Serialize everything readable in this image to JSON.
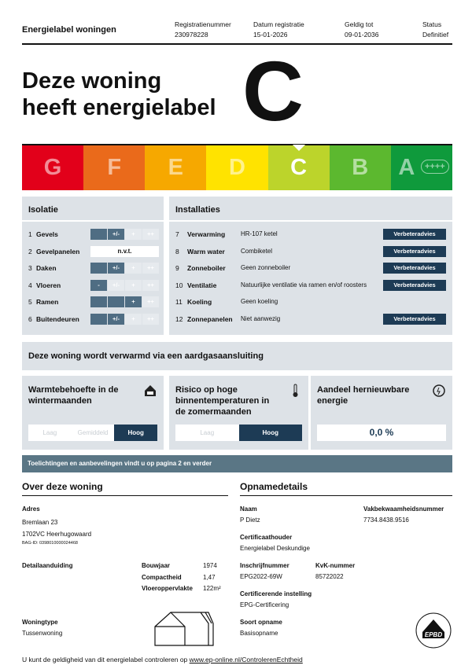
{
  "header": {
    "title": "Energielabel woningen",
    "fields": [
      {
        "label": "Registratienummer",
        "value": "230978228"
      },
      {
        "label": "Datum registratie",
        "value": "15-01-2026"
      },
      {
        "label": "Geldig tot",
        "value": "09-01-2036"
      },
      {
        "label": "Status",
        "value": "Definitief"
      }
    ]
  },
  "headline": {
    "lines": [
      "Deze woning",
      "heeft energielabel"
    ],
    "label": "C"
  },
  "scale": [
    {
      "letter": "G"
    },
    {
      "letter": "F"
    },
    {
      "letter": "E"
    },
    {
      "letter": "D"
    },
    {
      "letter": "C"
    },
    {
      "letter": "B"
    },
    {
      "letter": "A",
      "suffix": "++++"
    }
  ],
  "isolatie": {
    "title": "Isolatie",
    "rows": [
      {
        "num": "1",
        "name": "Gevels",
        "cells": [
          null,
          "+/-",
          "+",
          "++"
        ],
        "level": 1
      },
      {
        "num": "2",
        "name": "Gevelpanelen",
        "na": "n.v.t."
      },
      {
        "num": "3",
        "name": "Daken",
        "cells": [
          null,
          "+/-",
          "+",
          "++"
        ],
        "level": 1
      },
      {
        "num": "4",
        "name": "Vloeren",
        "cells": [
          "-",
          "+/-",
          "+",
          "++"
        ],
        "level": 0
      },
      {
        "num": "5",
        "name": "Ramen",
        "cells": [
          null,
          null,
          "+",
          "++"
        ],
        "level": 2
      },
      {
        "num": "6",
        "name": "Buitendeuren",
        "cells": [
          null,
          "+/-",
          "+",
          "++"
        ],
        "level": 1
      }
    ]
  },
  "installaties": {
    "title": "Installaties",
    "rows": [
      {
        "num": "7",
        "name": "Verwarming",
        "value": "HR-107 ketel",
        "advice": "Verbeteradvies"
      },
      {
        "num": "8",
        "name": "Warm water",
        "value": "Combiketel",
        "advice": "Verbeteradvies"
      },
      {
        "num": "9",
        "name": "Zonneboiler",
        "value": "Geen zonneboiler",
        "advice": "Verbeteradvies"
      },
      {
        "num": "10",
        "name": "Ventilatie",
        "value": "Natuurlijke ventilatie via ramen en/of roosters",
        "advice": "Verbeteradvies"
      },
      {
        "num": "11",
        "name": "Koeling",
        "value": "Geen koeling"
      },
      {
        "num": "12",
        "name": "Zonnepanelen",
        "value": "Niet aanwezig",
        "advice": "Verbeteradvies"
      }
    ]
  },
  "heating": "Deze woning wordt verwarmd via een aardgasaansluiting",
  "panels": [
    {
      "title": "Warmtebehoefte in de wintermaanden",
      "options": [
        "Laag",
        "Gemiddeld",
        "Hoog"
      ],
      "selected": 2
    },
    {
      "title": "Risico op hoge binnentemperaturen in de zomermaanden",
      "options": [
        "Laag",
        "Hoog"
      ],
      "selected": 1
    },
    {
      "title": "Aandeel hernieuwbare energie",
      "value": "0,0 %"
    }
  ],
  "notice": "Toelichtingen en aanbevelingen vindt u op pagina 2 en verder",
  "about": {
    "title": "Over deze woning",
    "address_label": "Adres",
    "address": [
      "Bremlaan 23",
      "1702VC Heerhugowaard"
    ],
    "bag": "BAG-ID: 0398010000024468",
    "detail_label": "Detailaanduiding",
    "props": [
      {
        "label": "Bouwjaar",
        "value": "1974"
      },
      {
        "label": "Compactheid",
        "value": "1,47"
      },
      {
        "label": "Vloeroppervlakte",
        "value": "122m²"
      }
    ],
    "type_label": "Woningtype",
    "type": "Tussenwoning"
  },
  "opname": {
    "title": "Opnamedetails",
    "fields": [
      {
        "label": "Naam",
        "value": "P Dietz"
      },
      {
        "label": "Vakbekwaamheidsnummer",
        "value": "7734.8438.9516"
      },
      {
        "label": "Certificaathouder",
        "value": "Energielabel Deskundige"
      },
      {
        "label": "Inschrijfnummer",
        "value": "EPG2022-69W"
      },
      {
        "label": "KvK-nummer",
        "value": "85722022"
      },
      {
        "label": "Certificerende instelling",
        "value": "EPG-Certificering"
      },
      {
        "label": "Soort opname",
        "value": "Basisopname"
      }
    ],
    "logo": "EPBD"
  },
  "footer": {
    "text": "U kunt de geldigheid van dit energielabel controleren op ",
    "link": "www.ep-online.nl/ControlerenEchtheid"
  }
}
